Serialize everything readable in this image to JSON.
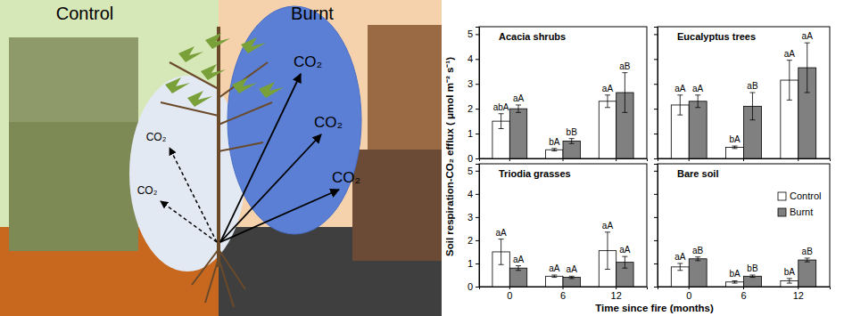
{
  "diagram": {
    "panel_labels": [
      "Control",
      "Burnt"
    ],
    "control_co2": [
      "CO₂",
      "CO₂"
    ],
    "burnt_co2": [
      "CO₂",
      "CO₂",
      "CO₂"
    ]
  },
  "chart_data": [
    {
      "type": "bar",
      "title": "Acacia shrubs",
      "categories": [
        "0",
        "6",
        "12"
      ],
      "y_label": "Soil respiration-CO₂ efflux ( μmol m⁻² s⁻¹)",
      "ylim": [
        0,
        5.3
      ],
      "yticks": [
        0,
        1,
        2,
        3,
        4,
        5
      ],
      "tick_labels": "y",
      "series": [
        {
          "name": "Control",
          "color": "#ffffff",
          "values": [
            1.5,
            0.35,
            2.3
          ],
          "errors": [
            0.3,
            0.05,
            0.25
          ],
          "letters": [
            "abA",
            "bA",
            "aA"
          ]
        },
        {
          "name": "Burnt",
          "color": "#808080",
          "values": [
            2.0,
            0.7,
            2.65
          ],
          "errors": [
            0.15,
            0.1,
            0.8
          ],
          "letters": [
            "aA",
            "bB",
            "aB"
          ]
        }
      ]
    },
    {
      "type": "bar",
      "title": "Eucalyptus trees",
      "categories": [
        "0",
        "6",
        "12"
      ],
      "ylim": [
        0,
        5.3
      ],
      "yticks": [
        0,
        1,
        2,
        3,
        4,
        5
      ],
      "tick_labels": false,
      "series": [
        {
          "name": "Control",
          "color": "#ffffff",
          "values": [
            2.15,
            0.45,
            3.15
          ],
          "errors": [
            0.4,
            0.05,
            0.8
          ],
          "letters": [
            "aA",
            "bA",
            "aA"
          ]
        },
        {
          "name": "Burnt",
          "color": "#808080",
          "values": [
            2.3,
            2.1,
            3.65
          ],
          "errors": [
            0.25,
            0.55,
            1.0
          ],
          "letters": [
            "aA",
            "aB",
            "aA"
          ]
        }
      ]
    },
    {
      "type": "bar",
      "title": "Triodia grasses",
      "categories": [
        "0",
        "6",
        "12"
      ],
      "x_label": "Time since fire (months)",
      "ylim": [
        0,
        5.3
      ],
      "yticks": [
        0,
        1,
        2,
        3,
        4,
        5
      ],
      "tick_labels": true,
      "series": [
        {
          "name": "Control",
          "color": "#ffffff",
          "values": [
            1.5,
            0.45,
            1.55
          ],
          "errors": [
            0.55,
            0.05,
            0.8
          ],
          "letters": [
            "aA",
            "aA",
            "aA"
          ]
        },
        {
          "name": "Burnt",
          "color": "#808080",
          "values": [
            0.8,
            0.4,
            1.05
          ],
          "errors": [
            0.1,
            0.05,
            0.25
          ],
          "letters": [
            "aA",
            "aA",
            "aA"
          ]
        }
      ]
    },
    {
      "type": "bar",
      "title": "Bare soil",
      "categories": [
        "0",
        "6",
        "12"
      ],
      "legend": "upper right",
      "ylim": [
        0,
        5.3
      ],
      "yticks": [
        0,
        1,
        2,
        3,
        4,
        5
      ],
      "tick_labels": "x",
      "series": [
        {
          "name": "Control",
          "color": "#ffffff",
          "values": [
            0.85,
            0.2,
            0.25
          ],
          "errors": [
            0.15,
            0.05,
            0.1
          ],
          "letters": [
            "aA",
            "bA",
            "bA"
          ]
        },
        {
          "name": "Burnt",
          "color": "#808080",
          "values": [
            1.2,
            0.45,
            1.15
          ],
          "errors": [
            0.08,
            0.05,
            0.08
          ],
          "letters": [
            "aB",
            "bB",
            "aB"
          ]
        }
      ]
    }
  ]
}
